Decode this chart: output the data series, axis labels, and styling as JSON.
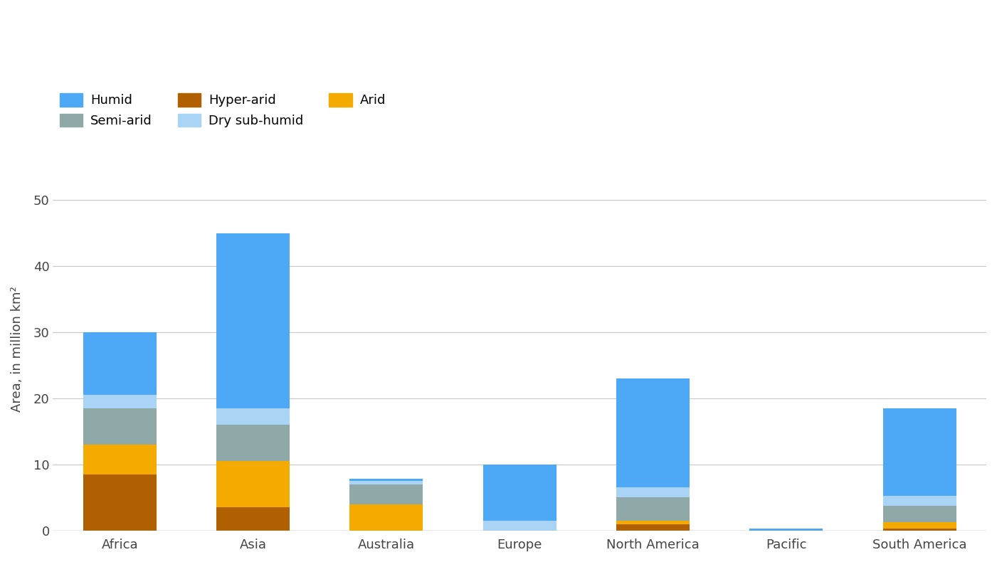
{
  "categories": [
    "Africa",
    "Asia",
    "Australia",
    "Europe",
    "North America",
    "Pacific",
    "South America"
  ],
  "series": {
    "Hyper-arid": [
      8.5,
      3.5,
      0.0,
      0.0,
      1.0,
      0.0,
      0.3
    ],
    "Arid": [
      4.5,
      7.0,
      4.0,
      0.0,
      0.5,
      0.0,
      1.0
    ],
    "Semi-arid": [
      5.5,
      5.5,
      3.0,
      0.0,
      3.5,
      0.0,
      2.5
    ],
    "Dry sub-humid": [
      2.0,
      2.5,
      0.5,
      1.5,
      1.5,
      0.0,
      1.5
    ],
    "Humid": [
      9.5,
      26.5,
      0.3,
      8.5,
      16.5,
      0.3,
      13.2
    ]
  },
  "colors": {
    "Hyper-arid": "#b06000",
    "Arid": "#f5aa00",
    "Semi-arid": "#8fa8a8",
    "Dry sub-humid": "#aad4f5",
    "Humid": "#4da8f5"
  },
  "stack_order": [
    "Hyper-arid",
    "Arid",
    "Semi-arid",
    "Dry sub-humid",
    "Humid"
  ],
  "legend_order": [
    "Humid",
    "Semi-arid",
    "Hyper-arid",
    "Dry sub-humid",
    "Arid"
  ],
  "ylabel": "Area, in million km²",
  "ylim": [
    0,
    55
  ],
  "yticks": [
    0,
    10,
    20,
    30,
    40,
    50
  ],
  "background_color": "#ffffff",
  "bar_width": 0.55,
  "grid_color": "#c8c8c8"
}
